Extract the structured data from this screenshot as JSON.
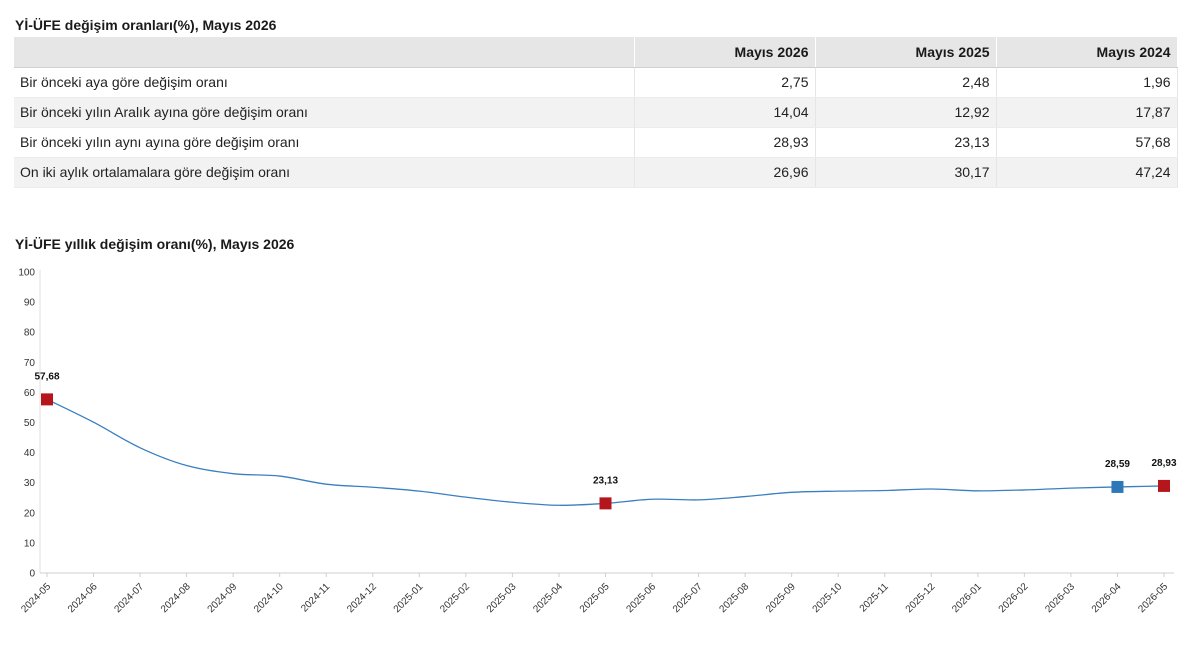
{
  "table_title": "Yİ-ÜFE değişim oranları(%), Mayıs 2026",
  "table": {
    "columns": [
      "",
      "Mayıs 2026",
      "Mayıs 2025",
      "Mayıs 2024"
    ],
    "rows": [
      {
        "label": "Bir önceki aya göre değişim oranı",
        "values": [
          "2,75",
          "2,48",
          "1,96"
        ]
      },
      {
        "label": "Bir önceki yılın Aralık ayına göre değişim oranı",
        "values": [
          "14,04",
          "12,92",
          "17,87"
        ]
      },
      {
        "label": "Bir önceki yılın aynı ayına göre değişim oranı",
        "values": [
          "28,93",
          "23,13",
          "57,68"
        ]
      },
      {
        "label": "On iki aylık ortalamalara göre değişim oranı",
        "values": [
          "26,96",
          "30,17",
          "47,24"
        ]
      }
    ]
  },
  "chart_title": "Yİ-ÜFE yıllık değişim oranı(%), Mayıs 2026",
  "chart_data": {
    "type": "line",
    "title": "Yİ-ÜFE yıllık değişim oranı(%), Mayıs 2026",
    "xlabel": "",
    "ylabel": "",
    "ylim": [
      0,
      100
    ],
    "yticks": [
      0,
      10,
      20,
      30,
      40,
      50,
      60,
      70,
      80,
      90,
      100
    ],
    "grid": false,
    "categories": [
      "2024-05",
      "2024-06",
      "2024-07",
      "2024-08",
      "2024-09",
      "2024-10",
      "2024-11",
      "2024-12",
      "2025-01",
      "2025-02",
      "2025-03",
      "2025-04",
      "2025-05",
      "2025-06",
      "2025-07",
      "2025-08",
      "2025-09",
      "2025-10",
      "2025-11",
      "2025-12",
      "2026-01",
      "2026-02",
      "2026-03",
      "2026-04",
      "2026-05"
    ],
    "series": [
      {
        "color": "#3a7fc0",
        "values": [
          57.68,
          50.1,
          41.6,
          35.7,
          33.0,
          32.2,
          29.5,
          28.5,
          27.2,
          25.2,
          23.5,
          22.5,
          23.13,
          24.5,
          24.3,
          25.4,
          26.8,
          27.2,
          27.4,
          27.9,
          27.3,
          27.6,
          28.2,
          28.59,
          28.93
        ]
      }
    ],
    "highlighted_points": [
      {
        "index": 0,
        "label": "57,68",
        "color": "#b5161b"
      },
      {
        "index": 12,
        "label": "23,13",
        "color": "#b5161b"
      },
      {
        "index": 23,
        "label": "28,59",
        "color": "#2e78b9"
      },
      {
        "index": 24,
        "label": "28,93",
        "color": "#b5161b"
      }
    ]
  }
}
